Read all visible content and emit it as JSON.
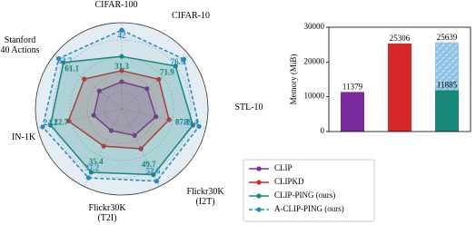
{
  "chart_data": [
    {
      "type": "radar",
      "axes": [
        "CIFAR-100",
        "CIFAR-10",
        "STL-10",
        "Flickr30K (I2T)",
        "Flickr30K (T2I)",
        "IN-1K",
        "Stanford 40 Actions"
      ],
      "rlims": [
        [
          10,
          45
        ],
        [
          40,
          80
        ],
        [
          60,
          92
        ],
        [
          20,
          55
        ],
        [
          15,
          40
        ],
        [
          10,
          25
        ],
        [
          30,
          66
        ]
      ],
      "series": [
        {
          "name": "CLIP",
          "color": "#7b2a9e",
          "values": [
            21,
            55,
            73,
            32,
            22,
            15,
            42
          ]
        },
        {
          "name": "CLIPKD",
          "color": "#d62728",
          "values": [
            25.5,
            62,
            78,
            38,
            27,
            19.5,
            50
          ]
        },
        {
          "name": "CLIP-PING (ours)",
          "color": "#17877a",
          "show_values": true,
          "values": [
            31.3,
            71.9,
            87.1,
            49.7,
            35.4,
            22.7,
            61.1
          ]
        },
        {
          "name": "A-CLIP-PING (ours)",
          "color": "#2a87b8",
          "linestyle": "dashed",
          "show_values": true,
          "values": [
            42.0,
            76.9,
            89.4,
            52.6,
            37.2,
            24.1,
            63.7
          ]
        }
      ],
      "legend": "lower right"
    },
    {
      "type": "bar",
      "ylabel": "Memory (MiB)",
      "categories": [
        null,
        null,
        null
      ],
      "ylim": [
        0,
        30000
      ],
      "yticks": [
        0,
        10000,
        20000,
        30000
      ],
      "series": [
        {
          "colors": [
            "#7b2a9e",
            "#d62728",
            "#17877a"
          ],
          "values": [
            11379,
            25306,
            11885
          ]
        },
        {
          "color": "#8fc3e6",
          "hatch": true,
          "values": [
            null,
            null,
            25639
          ]
        }
      ]
    }
  ]
}
